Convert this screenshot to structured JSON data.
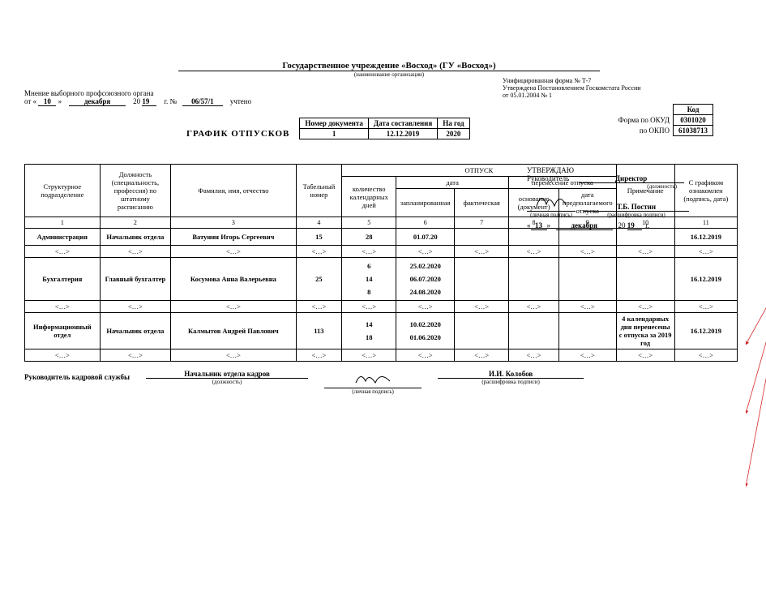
{
  "form_header": {
    "line1": "Унифицированная форма № Т-7",
    "line2": "Утверждена Постановлением Госкомстата России",
    "line3": "от 05.01.2004 № 1"
  },
  "codes": {
    "kod_label": "Код",
    "okud_label": "Форма по ОКУД",
    "okud": "0301020",
    "okpo_label": "по ОКПО",
    "okpo": "61038713"
  },
  "org": {
    "name": "Государственное учреждение «Восход» (ГУ «Восход»)",
    "caption": "(наименование организации)"
  },
  "union": {
    "caption": "Мнение выборного профсоюзного органа",
    "ot": "от «",
    "day": "10",
    "close": "»",
    "month": "декабря",
    "y20": "20",
    "yr": "19",
    "g": "г.  №",
    "num": "06/57/1",
    "uchteno": "учтено"
  },
  "approve": {
    "title": "УТВЕРЖДАЮ",
    "ruk": "Руководитель",
    "position": "Директор",
    "pos_cap": "(должность)",
    "sig_cap": "(личная подпись)",
    "name": "Т.Б. Постин",
    "name_cap": "(расшифровка подписи)",
    "day": "13",
    "month": "декабря",
    "y20": "20",
    "yr": "19",
    "g": "г."
  },
  "title": "ГРАФИК ОТПУСКОВ",
  "docbox": {
    "h1": "Номер документа",
    "h2": "Дата составления",
    "h3": "На год",
    "v1": "1",
    "v2": "12.12.2019",
    "v3": "2020"
  },
  "columns": {
    "c1": "Структурное подразделение",
    "c2": "Должность (специальность, профессия) по штатному расписанию",
    "c3": "Фамилия, имя, отчество",
    "c4": "Табельный номер",
    "otpusk": "ОТПУСК",
    "c5": "количество календарных дней",
    "date": "дата",
    "c6": "запланированная",
    "c7": "фактическая",
    "transfer": "перенесение отпуска",
    "c8": "основание (документ)",
    "c9": "дата предполагаемого отпуска",
    "c10": "Примечание",
    "c11": "С графиком ознакомлен (подпись, дата)",
    "n1": "1",
    "n2": "2",
    "n3": "3",
    "n4": "4",
    "n5": "5",
    "n6": "6",
    "n7": "7",
    "n8": "8",
    "n9": "9",
    "n10": "10",
    "n11": "11"
  },
  "ell": "<…>",
  "rows": [
    {
      "dept": "Администрация",
      "pos": "Начальник отдела",
      "fio": "Ватунин Игорь Сергеевич",
      "tab": "15",
      "days": [
        "28"
      ],
      "planned": [
        "01.07.20"
      ],
      "note": "",
      "ack": "16.12.2019"
    },
    {
      "dept": "Бухгалтерия",
      "pos": "Главный бухгалтер",
      "fio": "Косумова Анна Валерьевна",
      "tab": "25",
      "days": [
        "6",
        "14",
        "8"
      ],
      "planned": [
        "25.02.2020",
        "06.07.2020",
        "24.08.2020"
      ],
      "note": "",
      "ack": "16.12.2019"
    },
    {
      "dept": "Информационный отдел",
      "pos": "Начальник отдела",
      "fio": "Калмытов Андрей Павлович",
      "tab": "113",
      "days": [
        "14",
        "18"
      ],
      "planned": [
        "10.02.2020",
        "01.06.2020"
      ],
      "note": "4 календарных дня перенесены с отпуска за 2019 год",
      "ack": "16.12.2019"
    }
  ],
  "footer": {
    "left": "Руководитель кадровой службы",
    "pos": "Начальник отдела кадров",
    "pos_cap": "(должность)",
    "sig_cap": "(личная подпись)",
    "name": "И.И. Колобов",
    "name_cap": "(расшифровка подписи)"
  },
  "style": {
    "arrow_color": "#d62b2b"
  }
}
